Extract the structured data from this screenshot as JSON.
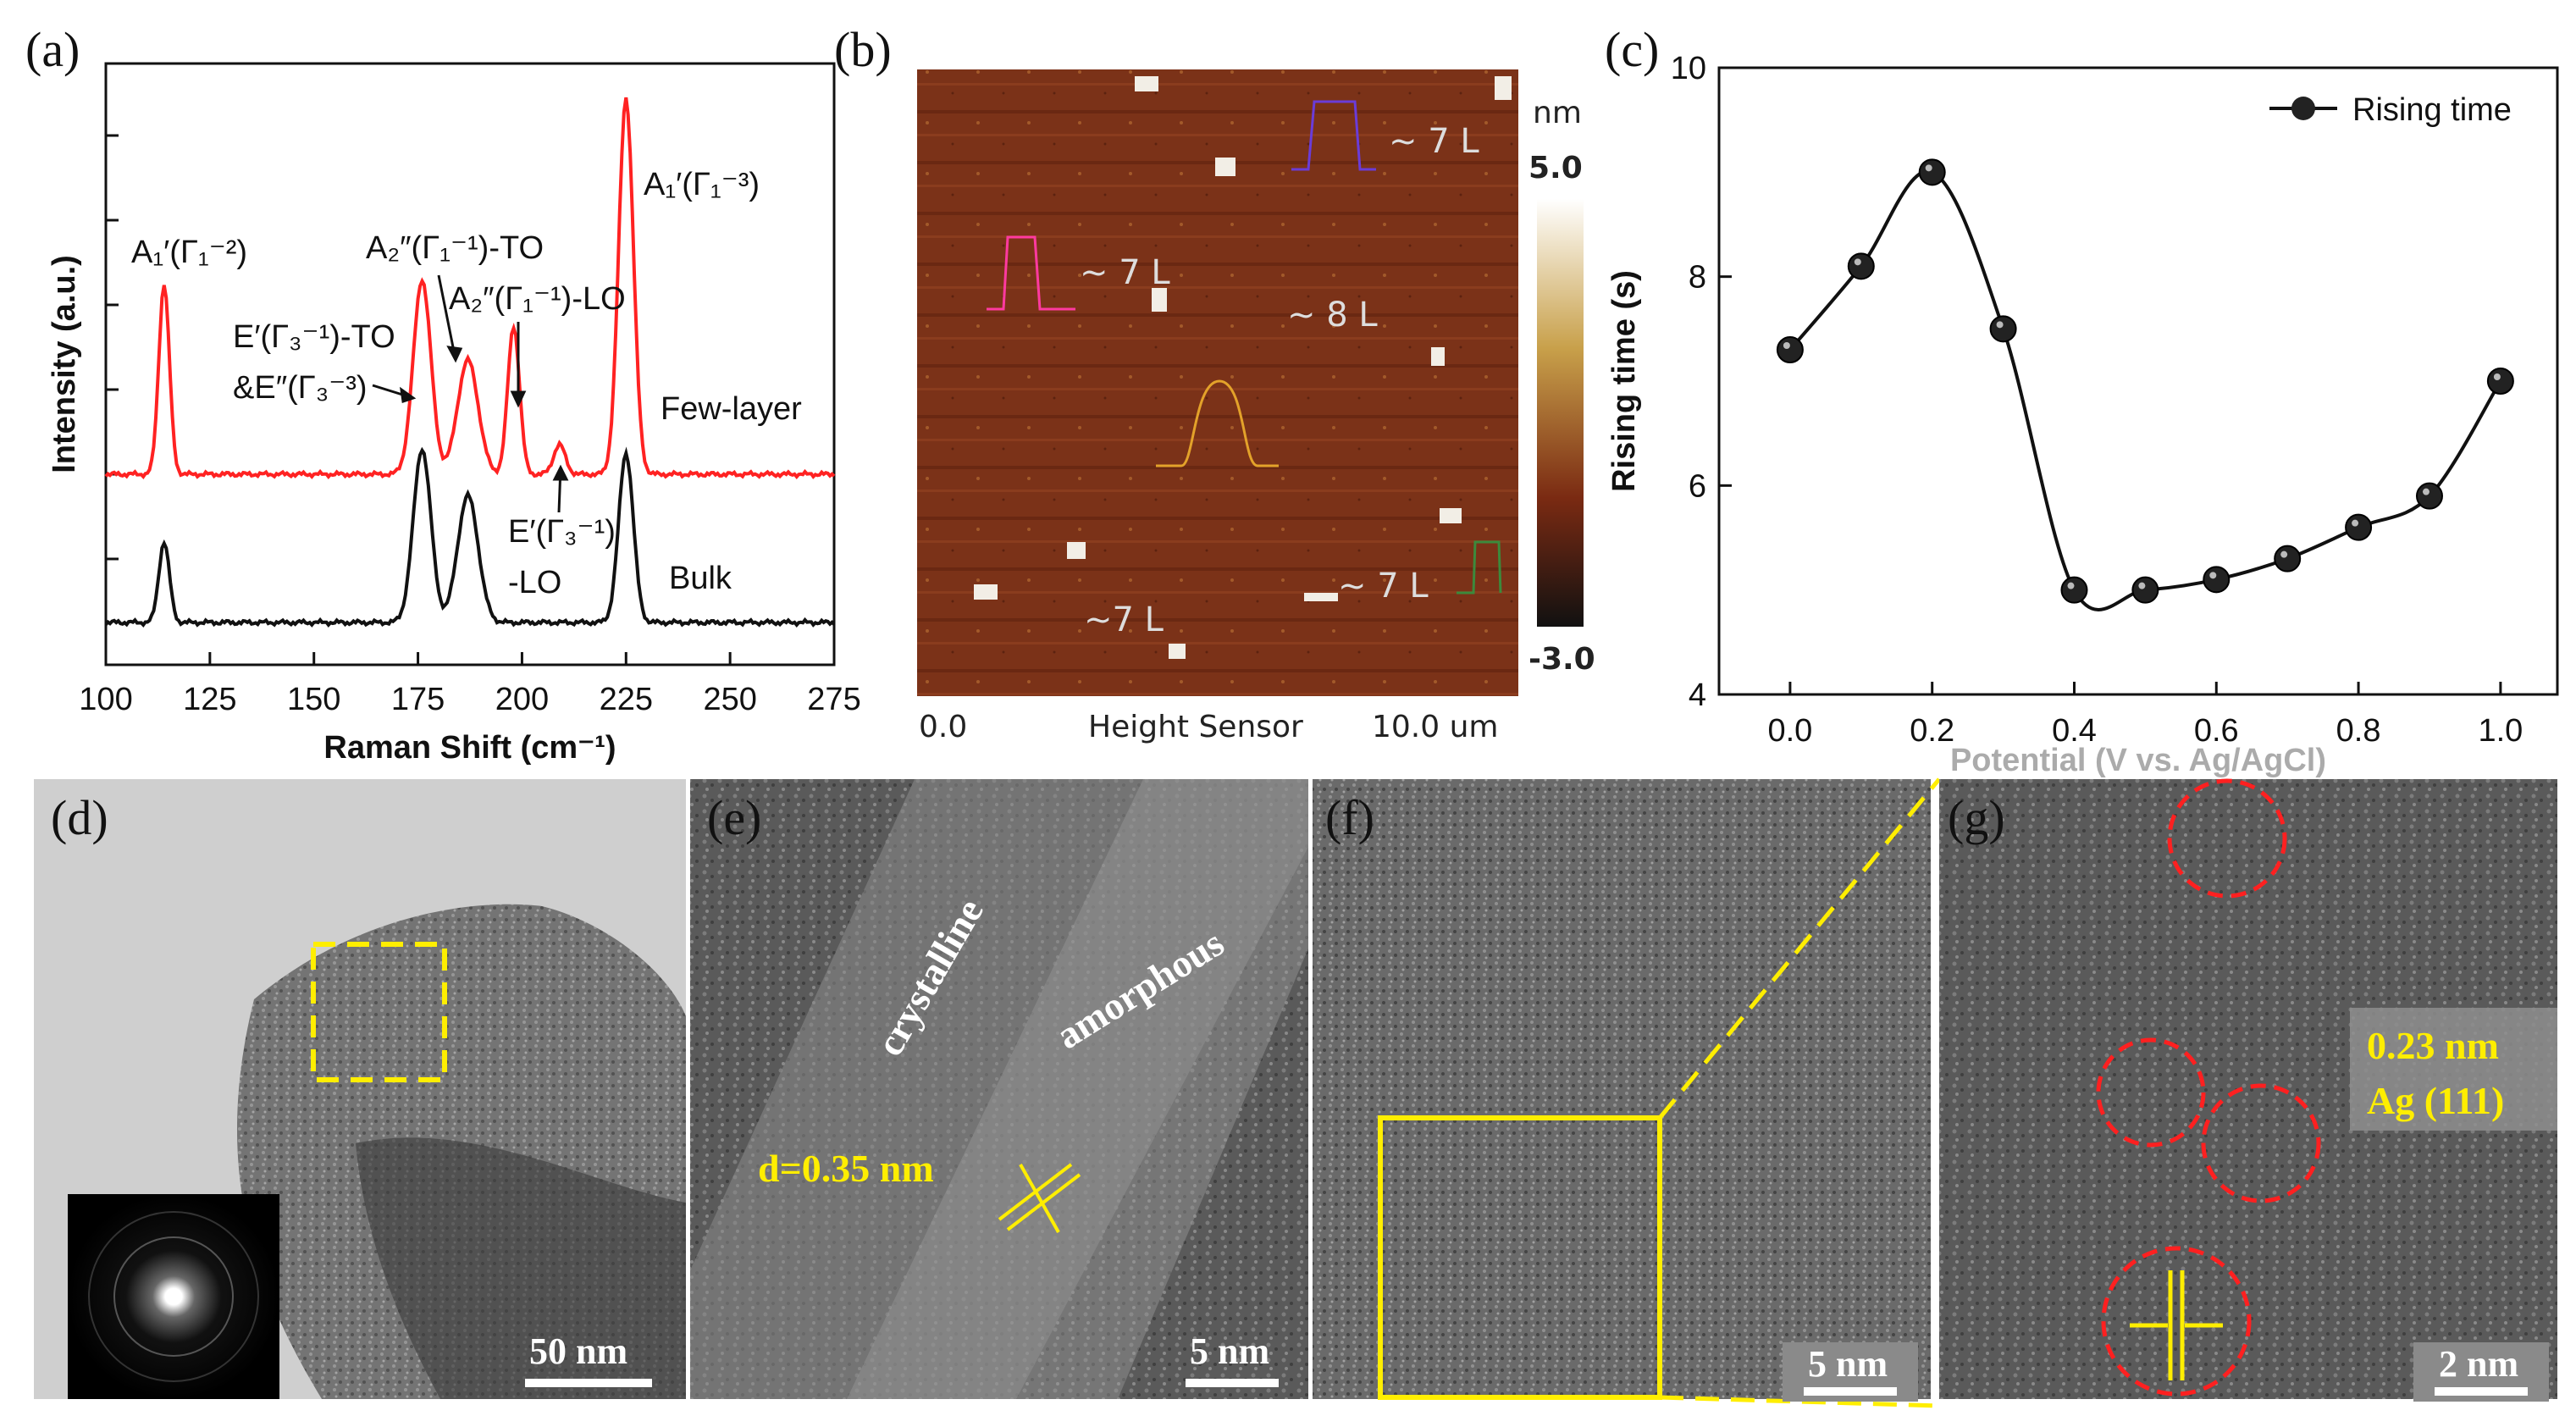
{
  "panels": {
    "a": {
      "label": "(a)"
    },
    "b": {
      "label": "(b)"
    },
    "c": {
      "label": "(c)"
    },
    "d": {
      "label": "(d)"
    },
    "e": {
      "label": "(e)"
    },
    "f": {
      "label": "(f)"
    },
    "g": {
      "label": "(g)"
    }
  },
  "raman": {
    "ylabel": "Intensity (a.u.)",
    "xlabel": "Raman Shift (cm⁻¹)",
    "xticks": [
      "100",
      "125",
      "150",
      "175",
      "200",
      "225",
      "250",
      "275"
    ],
    "curve_few": "Few-layer",
    "curve_bulk": "Bulk",
    "peak_A1_G12": "A₁′(Γ₁⁻²)",
    "peak_A2_TO": "A₂″(Γ₁⁻¹)-TO",
    "peak_A2_LO": "A₂″(Γ₁⁻¹)-LO",
    "peak_E_TO_1": "E′(Γ₃⁻¹)-TO",
    "peak_E_TO_2": "&E″(Γ₃⁻³)",
    "peak_E_LO_1": "E′(Γ₃⁻¹)",
    "peak_E_LO_2": "-LO",
    "peak_A1_G13": "A₁′(Γ₁⁻³)",
    "colors": {
      "few": "#ff2222",
      "bulk": "#111111"
    }
  },
  "afm": {
    "unit": "nm",
    "max": "5.0",
    "min": "-3.0",
    "x0": "0.0",
    "sensor": "Height Sensor",
    "x1": "10.0 um",
    "layers": [
      "~ 7 L",
      "~ 7 L",
      "~ 8 L",
      "~ 7 L",
      "~7 L"
    ]
  },
  "chart_data": {
    "type": "line",
    "ylabel": "Rising time (s)",
    "xlabel": "Potential (V vs. Ag/AgCl)",
    "legend": "Rising time",
    "legend_position": "top-right",
    "xticks": [
      "0.0",
      "0.2",
      "0.4",
      "0.6",
      "0.8",
      "1.0"
    ],
    "yticks": [
      "4",
      "6",
      "8",
      "10"
    ],
    "xlim": [
      -0.1,
      1.08
    ],
    "ylim": [
      4,
      10
    ],
    "x": [
      0.0,
      0.1,
      0.2,
      0.3,
      0.4,
      0.5,
      0.6,
      0.7,
      0.8,
      0.9,
      1.0
    ],
    "y": [
      7.3,
      8.1,
      9.0,
      7.5,
      5.0,
      5.0,
      5.1,
      5.3,
      5.6,
      5.9,
      7.0
    ]
  },
  "tem": {
    "d_scale": "50 nm",
    "e_scale": "5 nm",
    "e_crystalline": "crystalline",
    "e_amorphous": "amorphous",
    "e_spacing": "d=0.35 nm",
    "f_scale": "5 nm",
    "g_scale": "2 nm",
    "g_spacing": "0.23 nm",
    "g_plane": "Ag (111)"
  }
}
